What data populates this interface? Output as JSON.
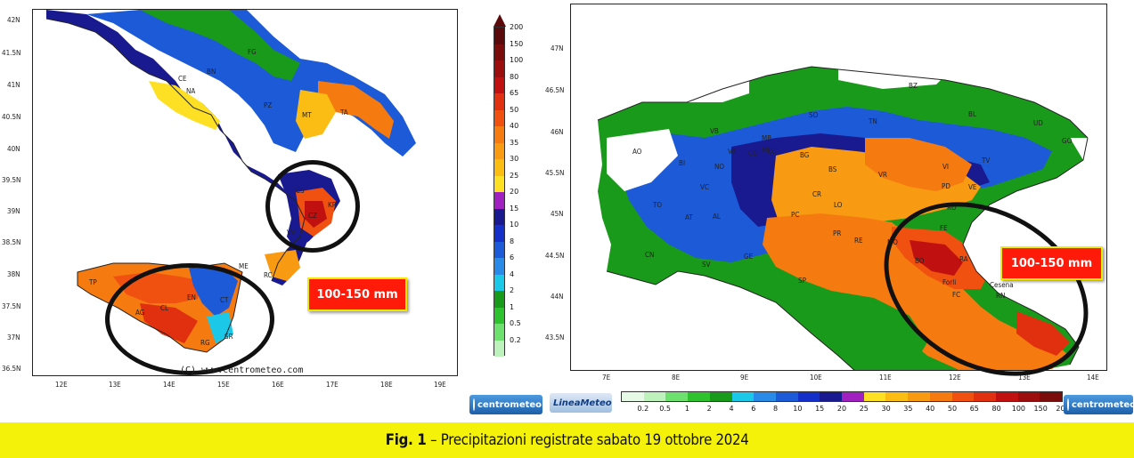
{
  "south_map": {
    "lat_labels": [
      "42N",
      "41.5N",
      "41N",
      "40.5N",
      "40N",
      "39.5N",
      "39N",
      "38.5N",
      "38N",
      "37.5N",
      "37N",
      "36.5N"
    ],
    "lon_labels": [
      "12E",
      "13E",
      "14E",
      "15E",
      "16E",
      "17E",
      "18E",
      "19E"
    ],
    "city_codes": [
      "FG",
      "BN",
      "CE",
      "NA",
      "PZ",
      "MT",
      "TA",
      "CS",
      "KR",
      "CZ",
      "VV",
      "RC",
      "ME",
      "TP",
      "AG",
      "CL",
      "EN",
      "CT",
      "RG",
      "SR"
    ],
    "callout": "100-150 mm",
    "copyright": "(C) www.centrometeo.com"
  },
  "north_map": {
    "lat_labels": [
      "47N",
      "46.5N",
      "46N",
      "45.5N",
      "45N",
      "44.5N",
      "44N",
      "43.5N"
    ],
    "lon_labels": [
      "7E",
      "8E",
      "9E",
      "10E",
      "11E",
      "12E",
      "13E",
      "14E"
    ],
    "city_codes": [
      "AO",
      "BI",
      "VB",
      "CO",
      "LC",
      "SO",
      "BZ",
      "TN",
      "BL",
      "UD",
      "GO",
      "TO",
      "VC",
      "NO",
      "VA",
      "MB",
      "MI",
      "BG",
      "BS",
      "VR",
      "VI",
      "TV",
      "PD",
      "VE",
      "RO",
      "FE",
      "CR",
      "LO",
      "PC",
      "PR",
      "RE",
      "MO",
      "BO",
      "RA",
      "AT",
      "AL",
      "CN",
      "SV",
      "GE",
      "SP",
      "FC",
      "RN",
      "Forli",
      "Cesena"
    ],
    "callout": "100-150 mm"
  },
  "colorbar_vertical": {
    "labels": [
      "200",
      "150",
      "100",
      "80",
      "65",
      "50",
      "40",
      "35",
      "30",
      "25",
      "20",
      "15",
      "10",
      "8",
      "6",
      "4",
      "2",
      "1",
      "0.5",
      "0.2"
    ],
    "colors": [
      "#5a0a0a",
      "#7a0c0c",
      "#9c0e0e",
      "#c0100f",
      "#e0300f",
      "#f05010",
      "#f57a10",
      "#f89a12",
      "#fbbd14",
      "#fde024",
      "#a020c0",
      "#1a1a90",
      "#1430c8",
      "#1c5ad8",
      "#2a8ae8",
      "#1cc8e8",
      "#1a9a1a",
      "#2ec22e",
      "#6ee06e",
      "#bdf2bd"
    ]
  },
  "colorbar_horizontal": {
    "labels": [
      "0.2",
      "0.5",
      "1",
      "2",
      "4",
      "6",
      "8",
      "10",
      "15",
      "20",
      "25",
      "30",
      "35",
      "40",
      "50",
      "65",
      "80",
      "100",
      "150",
      "200"
    ],
    "colors": [
      "#e6fae6",
      "#bdf2bd",
      "#6ee06e",
      "#2ec22e",
      "#1a9a1a",
      "#1cc8e8",
      "#2a8ae8",
      "#1c5ad8",
      "#1430c8",
      "#1a1a90",
      "#a020c0",
      "#fde024",
      "#fbbd14",
      "#f89a12",
      "#f57a10",
      "#f05010",
      "#e0300f",
      "#c0100f",
      "#9c0e0e",
      "#7a0c0c"
    ]
  },
  "logos": {
    "centrometeo_left": "centrometeo",
    "lineameteo": "LineaMeteo",
    "centrometeo_right": "centrometeo"
  },
  "caption": {
    "prefix": "Fig. 1",
    "text": " – Precipitazioni registrate sabato 19 ottobre 2024"
  }
}
